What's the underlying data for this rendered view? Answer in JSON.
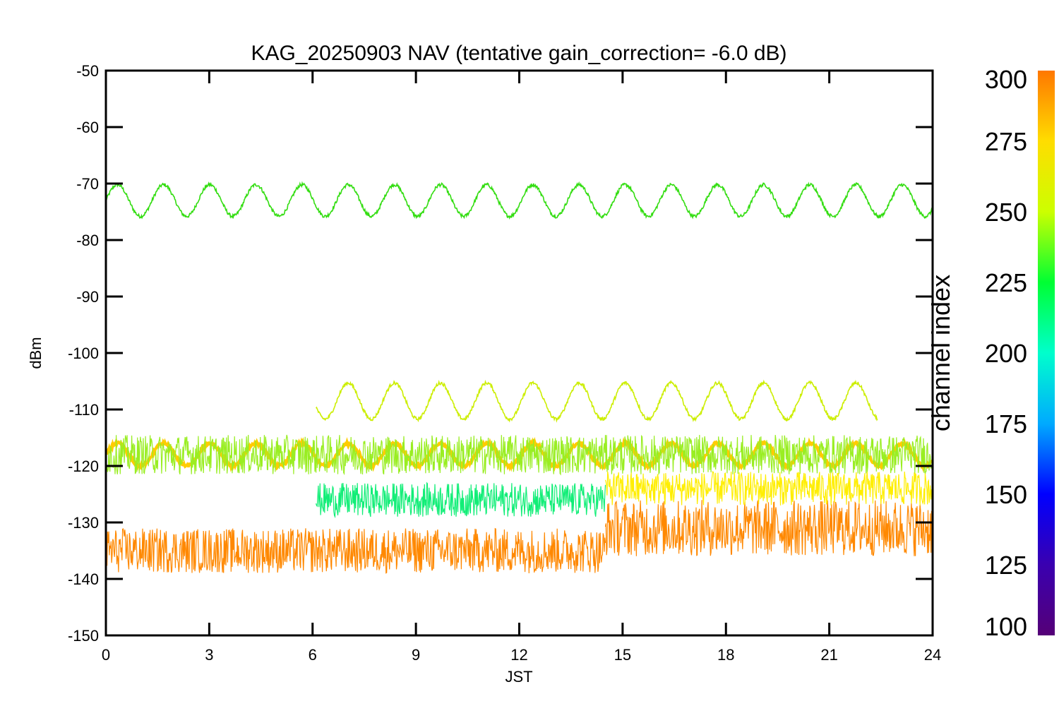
{
  "chart_data": {
    "type": "line",
    "title": "KAG_20250903 NAV (tentative gain_correction= -6.0 dB)",
    "xlabel": "JST",
    "ylabel": "dBm",
    "xlim": [
      0,
      24
    ],
    "ylim": [
      -150,
      -50
    ],
    "xticks": [
      "0",
      "3",
      "6",
      "9",
      "12",
      "15",
      "18",
      "21",
      "24"
    ],
    "yticks": [
      "-50",
      "-60",
      "-70",
      "-80",
      "-90",
      "-100",
      "-110",
      "-120",
      "-130",
      "-140",
      "-150"
    ],
    "colorbar": {
      "label": "channel index",
      "range": [
        100,
        300
      ],
      "ticks": [
        "100",
        "125",
        "150",
        "175",
        "200",
        "225",
        "250",
        "275",
        "300"
      ],
      "colors": [
        "#550077",
        "#3a00b0",
        "#0000ff",
        "#00aaff",
        "#00ffcc",
        "#00ff33",
        "#ccff00",
        "#ffdd00",
        "#ff7700"
      ]
    },
    "series": [
      {
        "channel": 235,
        "color": "#33dd11",
        "x_range": [
          0,
          24
        ],
        "mean": -73,
        "amplitude": 2.8,
        "period_h": 1.34
      },
      {
        "channel": 260,
        "color": "#ccee00",
        "x_range": [
          6.1,
          22.4
        ],
        "mean": -108.5,
        "amplitude": 3.2,
        "period_h": 1.34
      },
      {
        "channel": 280,
        "color": "#ffcc00",
        "x_range": [
          0,
          24
        ],
        "mean": -118,
        "amplitude": 2.0,
        "period_h": 1.34
      },
      {
        "channel": 250,
        "color": "#99ee22",
        "x_range": [
          0,
          24
        ],
        "mean": -118,
        "spread": 3.5,
        "note_text": ""
      },
      {
        "channel": 215,
        "color": "#11ee77",
        "x_range": [
          6.1,
          14.5
        ],
        "mean": -126,
        "spread": 3.0
      },
      {
        "channel": 290,
        "color": "#ff8800",
        "x_range": [
          0,
          14.5
        ],
        "mean": -135,
        "spread": 4.0
      },
      {
        "channel": 290,
        "color": "#ff8800",
        "x_range": [
          14.5,
          24
        ],
        "mean": -131,
        "spread": 5.0
      },
      {
        "channel": 270,
        "color": "#ffee00",
        "x_range": [
          14.5,
          24
        ],
        "mean": -124,
        "spread": 3.0
      }
    ]
  }
}
